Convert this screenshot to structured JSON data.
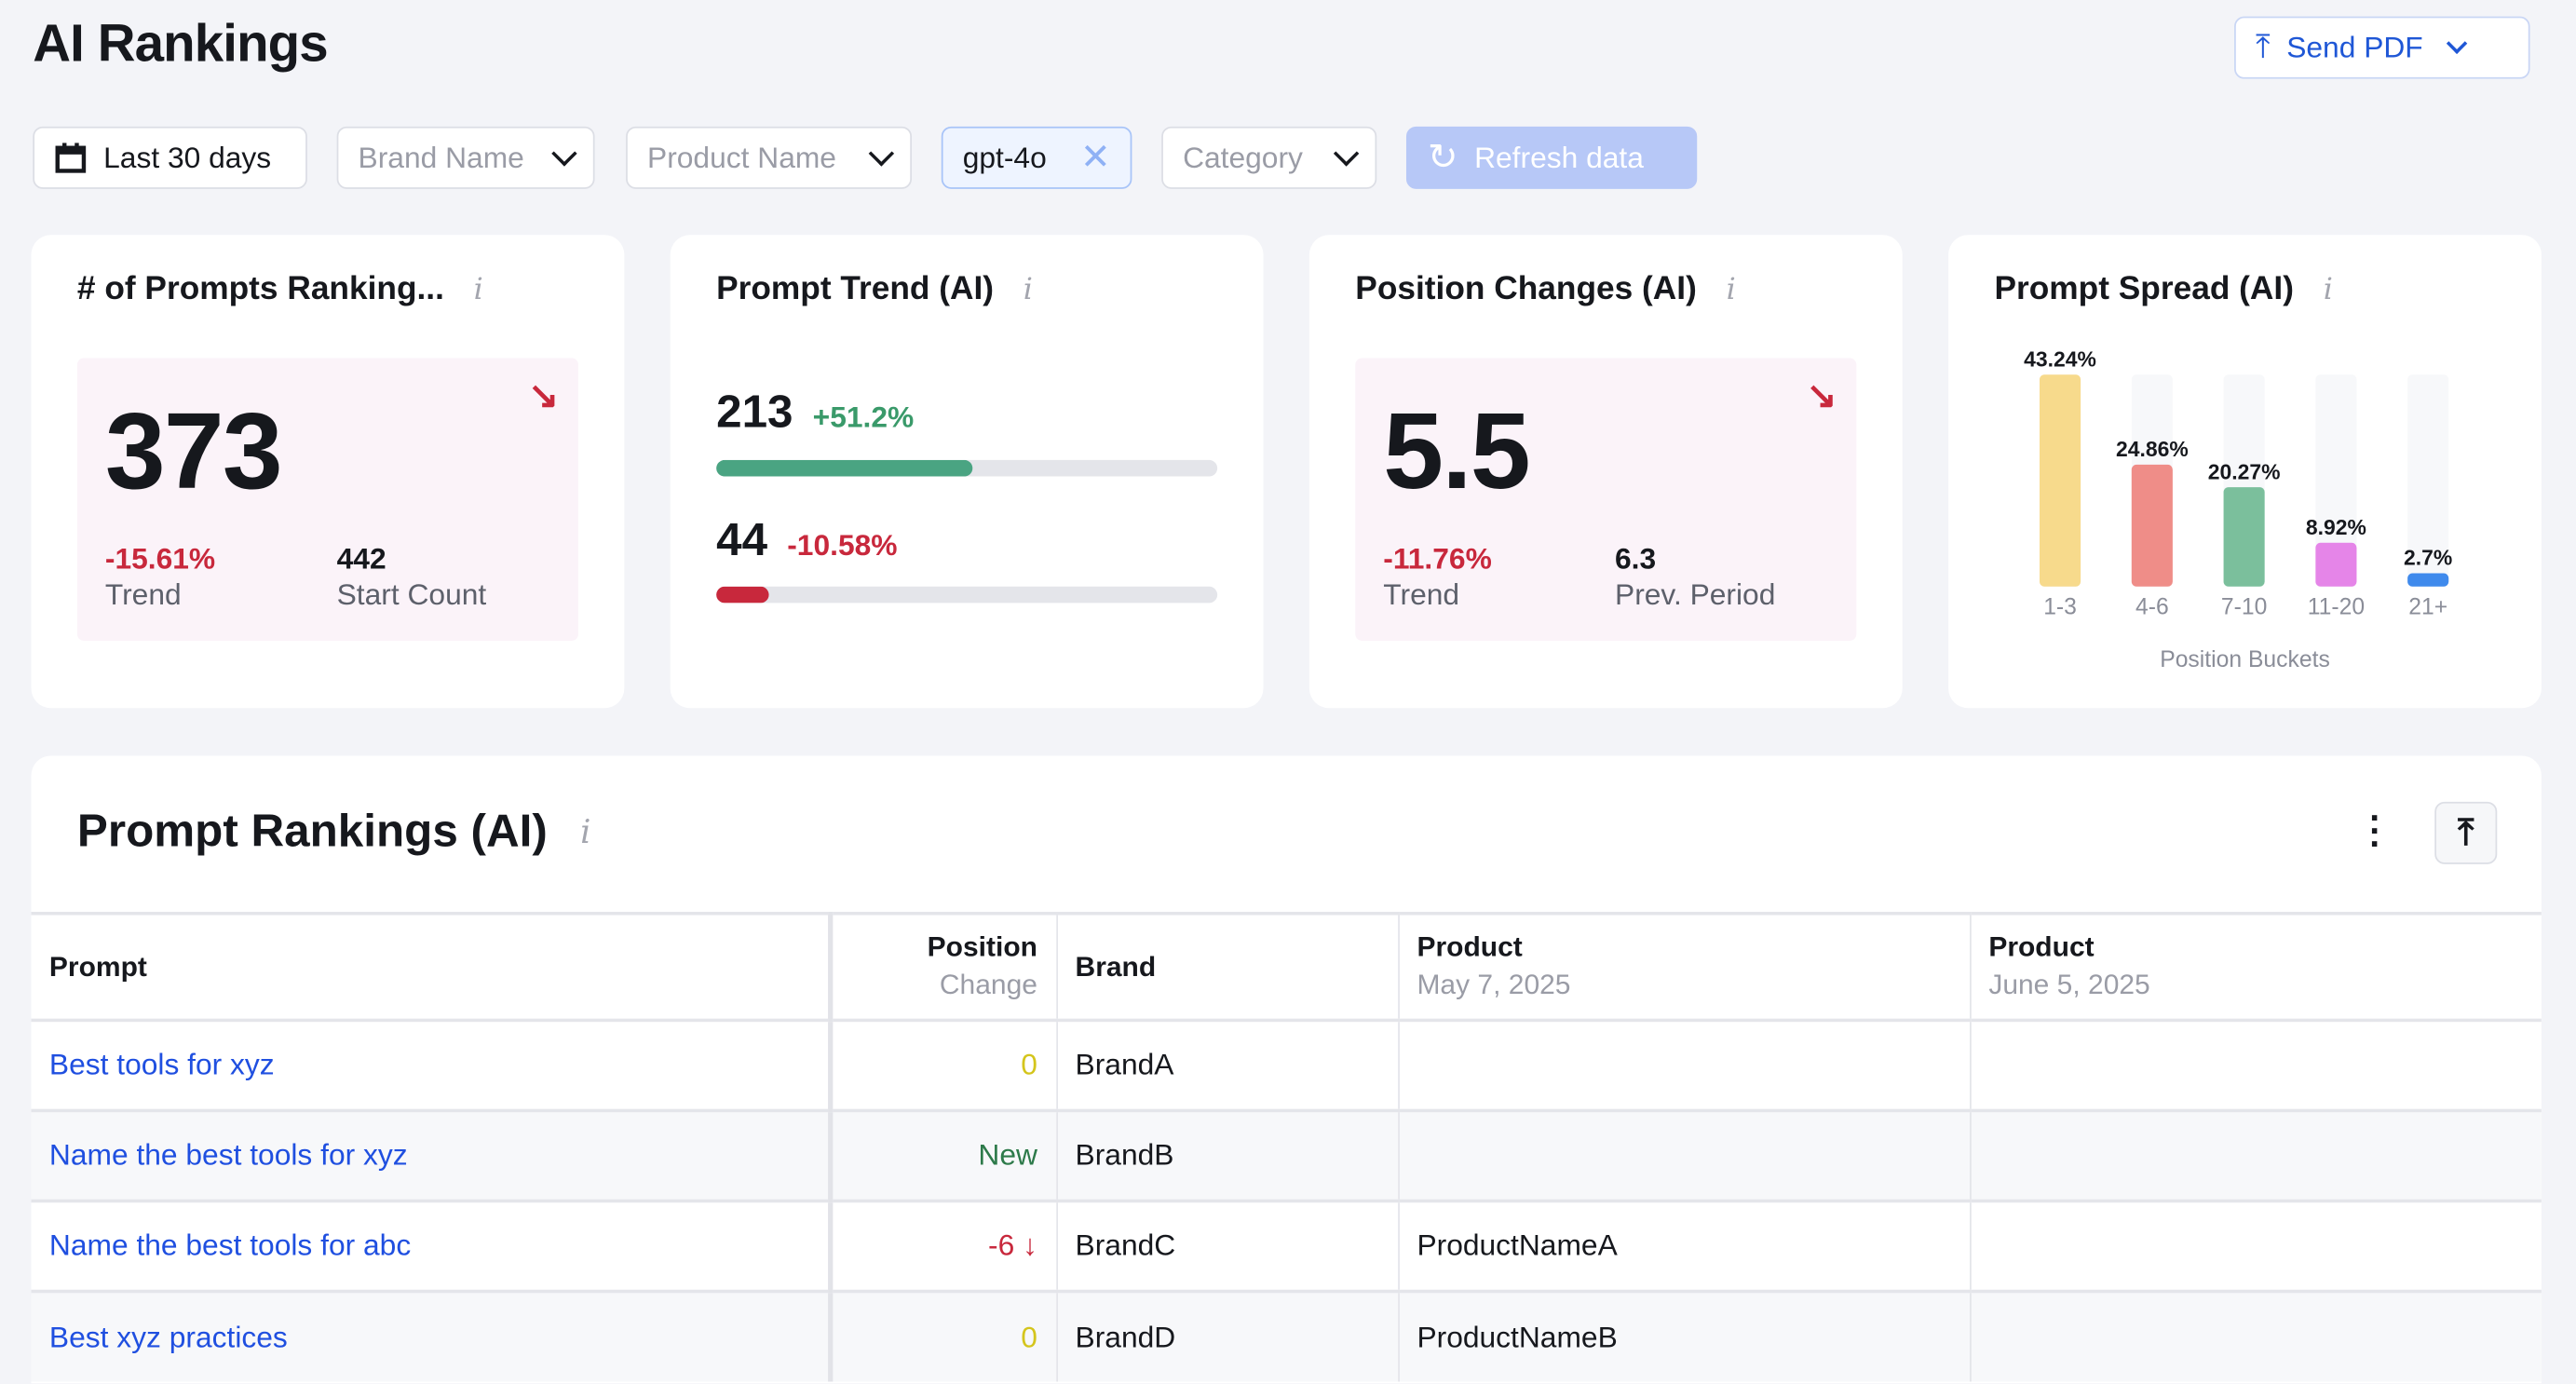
{
  "header": {
    "title": "AI Rankings",
    "send_pdf": "Send PDF"
  },
  "filters": {
    "date": "Last 30 days",
    "brand": "Brand Name",
    "product": "Product Name",
    "model": "gpt-4o",
    "category": "Category",
    "refresh": "Refresh data"
  },
  "cards": {
    "prompts_ranking": {
      "title": "# of Prompts Ranking...",
      "value": "373",
      "trend": "-15.61%",
      "trend_label": "Trend",
      "start": "442",
      "start_label": "Start Count",
      "direction": "down"
    },
    "prompt_trend": {
      "title": "Prompt Trend (AI)",
      "rows": [
        {
          "value": "213",
          "change": "+51.2%",
          "progress": 0.512,
          "color": "#4aa482"
        },
        {
          "value": "44",
          "change": "-10.58%",
          "progress": 0.1058,
          "color": "#c8283c"
        }
      ]
    },
    "position_changes": {
      "title": "Position Changes (AI)",
      "value": "5.5",
      "trend": "-11.76%",
      "trend_label": "Trend",
      "prev": "6.3",
      "prev_label": "Prev. Period",
      "direction": "down"
    },
    "prompt_spread": {
      "title": "Prompt Spread (AI)"
    }
  },
  "chart_data": {
    "type": "bar",
    "xlabel": "Position Buckets",
    "categories": [
      "1-3",
      "4-6",
      "7-10",
      "11-20",
      "21+"
    ],
    "values": [
      43.24,
      24.86,
      20.27,
      8.92,
      2.7
    ],
    "value_labels": [
      "43.24%",
      "24.86%",
      "20.27%",
      "8.92%",
      "2.7%"
    ],
    "colors": [
      "#f7da8c",
      "#ef8d88",
      "#7bbf9c",
      "#e585e8",
      "#3f8aec"
    ]
  },
  "table": {
    "title": "Prompt Rankings (AI)",
    "headers": {
      "prompt": "Prompt",
      "position": "Position",
      "position_sub": "Change",
      "brand": "Brand",
      "product1": "Product",
      "product1_sub": "May 7, 2025",
      "product2": "Product",
      "product2_sub": "June 5, 2025"
    },
    "rows": [
      {
        "prompt": "Best tools for xyz",
        "change": "0",
        "change_color": "#d4c51c",
        "brand": "BrandA",
        "product1": "",
        "product2": ""
      },
      {
        "prompt": "Name the best tools for xyz",
        "change": "New",
        "change_color": "#2d7a4a",
        "brand": "BrandB",
        "product1": "",
        "product2": ""
      },
      {
        "prompt": "Name the best tools for abc",
        "change": "-6 ↓",
        "change_color": "#c8283c",
        "brand": "BrandC",
        "product1": "ProductNameA",
        "product2": ""
      },
      {
        "prompt": "Best xyz practices",
        "change": "0",
        "change_color": "#d4c51c",
        "brand": "BrandD",
        "product1": "ProductNameB",
        "product2": ""
      }
    ]
  }
}
